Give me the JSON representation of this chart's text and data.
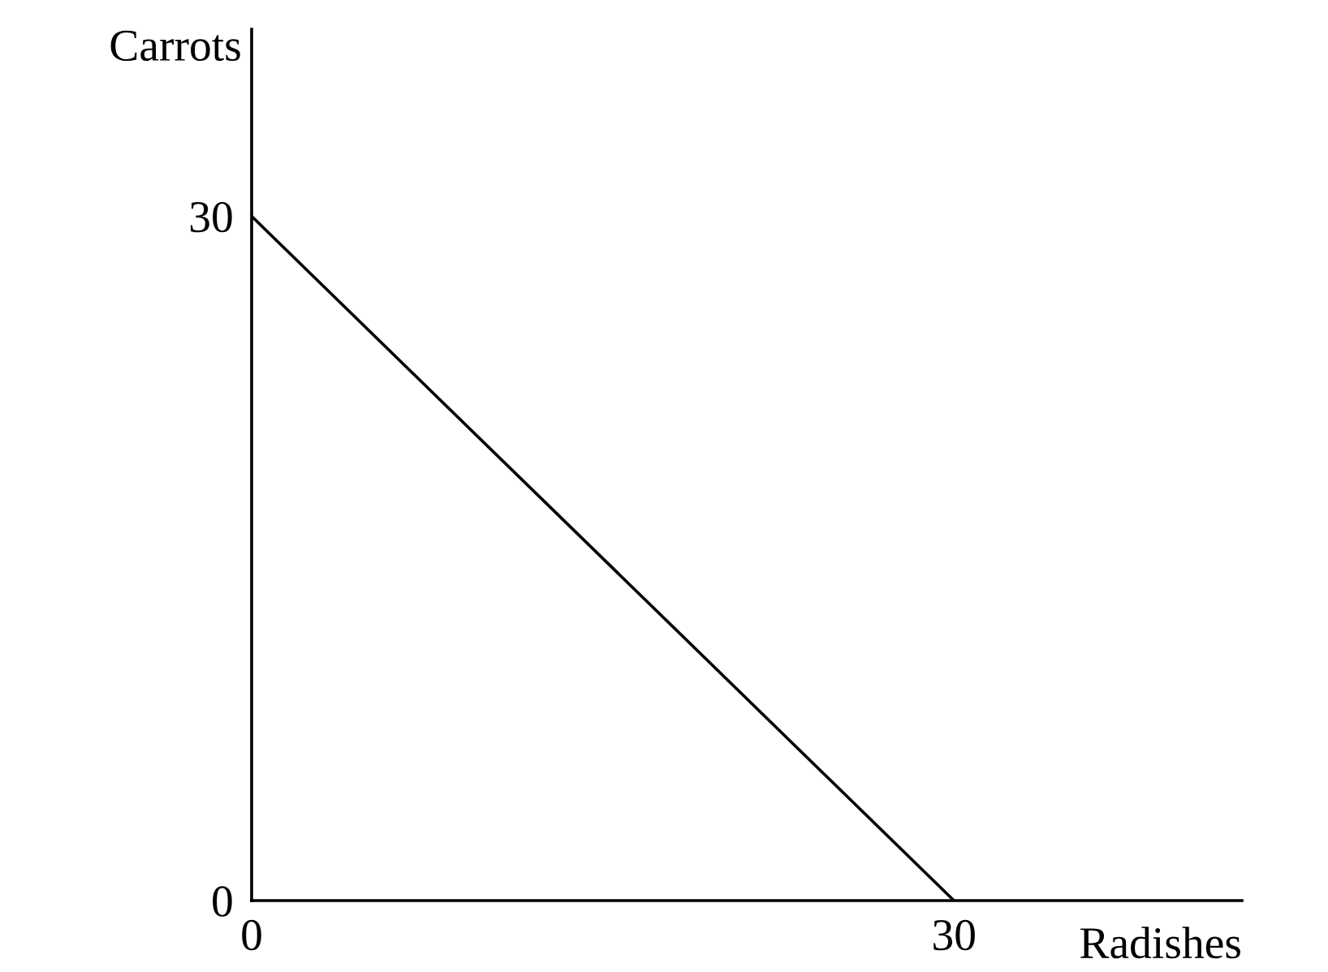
{
  "chart_data": {
    "type": "line",
    "xlabel": "Radishes",
    "ylabel": "Carrots",
    "series": [
      {
        "color": "#000000",
        "x": [
          0,
          30
        ],
        "values": [
          30,
          0
        ]
      }
    ],
    "xlim": [
      0,
      42.3
    ],
    "ylim": [
      0,
      38.2
    ],
    "xticks": [
      0,
      30
    ],
    "yticks": [
      0,
      30
    ],
    "grid": false,
    "legend": false,
    "marker": "none",
    "line_style": "solid"
  }
}
